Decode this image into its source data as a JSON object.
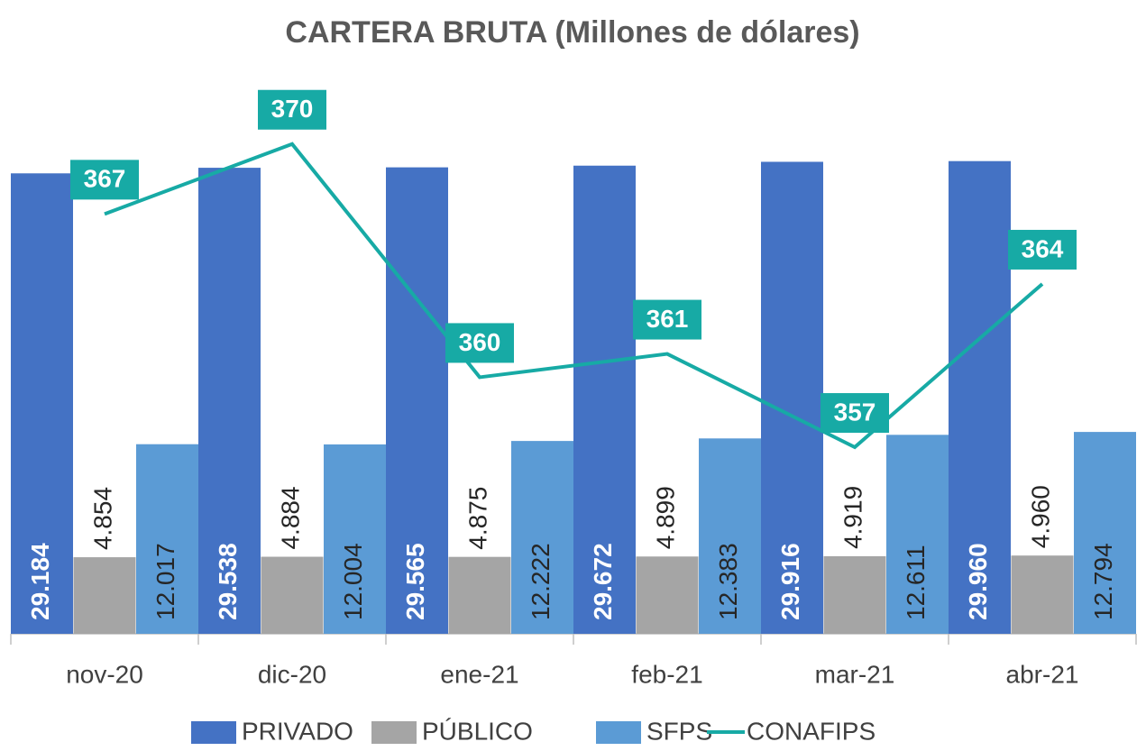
{
  "chart_data": {
    "type": "bar",
    "title": "CARTERA BRUTA (Millones de dólares)",
    "categories": [
      "nov-20",
      "dic-20",
      "ene-21",
      "feb-21",
      "mar-21",
      "abr-21"
    ],
    "series": [
      {
        "name": "PRIVADO",
        "color": "#4472c4",
        "values": [
          29.184,
          29.538,
          29.565,
          29.672,
          29.916,
          29.96
        ],
        "value_labels": [
          "29.184",
          "29.538",
          "29.565",
          "29.672",
          "29.916",
          "29.960"
        ]
      },
      {
        "name": "PÚBLICO",
        "color": "#a5a5a5",
        "values": [
          4.854,
          4.884,
          4.875,
          4.899,
          4.919,
          4.96
        ],
        "value_labels": [
          "4.854",
          "4.884",
          "4.875",
          "4.899",
          "4.919",
          "4.960"
        ]
      },
      {
        "name": "SFPS",
        "color": "#5b9bd5",
        "values": [
          12.017,
          12.004,
          12.222,
          12.383,
          12.611,
          12.794
        ],
        "value_labels": [
          "12.017",
          "12.004",
          "12.222",
          "12.383",
          "12.611",
          "12.794"
        ]
      },
      {
        "name": "CONAFIPS",
        "color": "#17aaa5",
        "type": "line",
        "axis": "y2",
        "values": [
          367,
          370,
          360,
          361,
          357,
          364
        ]
      }
    ],
    "ylim": [
      0,
      34
    ],
    "y2lim": [
      349,
      372
    ],
    "legend": "bottom"
  }
}
